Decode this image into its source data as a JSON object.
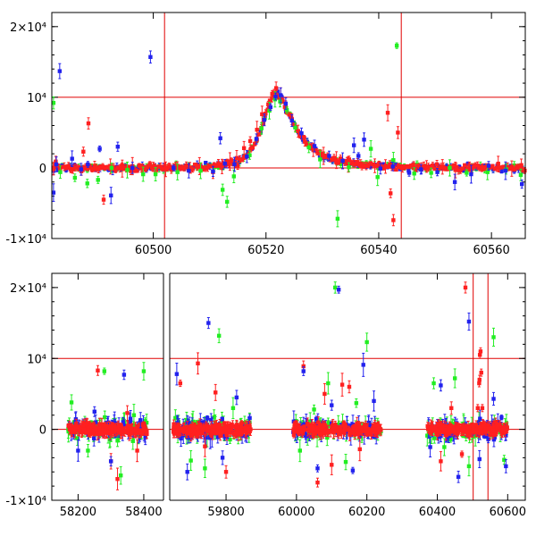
{
  "colors": {
    "red": "#ff2020",
    "green": "#22ee22",
    "blue": "#2222ee",
    "frame": "#000000",
    "ref_line": "#e00000"
  },
  "chart_data": [
    {
      "type": "scatter",
      "title": "",
      "xlabel": "",
      "ylabel": "",
      "xlim": [
        60482,
        60566
      ],
      "ylim": [
        -10000,
        22000
      ],
      "xticks": [
        60500,
        60520,
        60540,
        60560
      ],
      "xtick_labels": [
        "60500",
        "60520",
        "60540",
        "60560"
      ],
      "yticks": [
        -10000,
        0,
        10000,
        20000
      ],
      "ytick_labels": [
        "-1×10⁴",
        "0",
        "10⁴",
        "2×10⁴"
      ],
      "hlines": [
        0,
        10000
      ],
      "vlines": [
        60502,
        60544
      ],
      "error_bars": true,
      "model_curve": {
        "x": [
          60482,
          60500,
          60510,
          60515,
          60517,
          60519,
          60520,
          60521,
          60522,
          60523,
          60524,
          60526,
          60528,
          60530,
          60533,
          60537,
          60542,
          60550,
          60566
        ],
        "y": [
          0,
          0,
          150,
          800,
          2200,
          5000,
          7600,
          9800,
          10600,
          9400,
          7600,
          4600,
          2800,
          1700,
          1000,
          500,
          200,
          80,
          0
        ]
      },
      "series": [
        {
          "name": "",
          "color": "red",
          "x": [
            60482.3,
            60482.7,
            60485.5,
            60487.6,
            60488.5,
            60489.6,
            60491.2,
            60492.4,
            60494.5,
            60496.3,
            60498.1,
            60500.0,
            60502.2,
            60504.3,
            60506.5,
            60508.2,
            60510.6,
            60512.2,
            60513.6,
            60514.8,
            60516.1,
            60517.2,
            60518.4,
            60519.3,
            60520.4,
            60521.1,
            60521.8,
            60522.6,
            60523.5,
            60524.6,
            60525.7,
            60526.9,
            60528.4,
            60530.2,
            60532.5,
            60534.6,
            60536.8,
            60539.3,
            60541.2,
            60541.6,
            60542.1,
            60542.6,
            60543.4,
            60546.2,
            60548.5,
            60551.3,
            60553.6,
            60556.1,
            60558.4,
            60561.2,
            60563.6,
            60565.3
          ],
          "y": [
            -100,
            900,
            -300,
            2300,
            6300,
            300,
            -4500,
            200,
            -100,
            250,
            0,
            150,
            -200,
            300,
            50,
            250,
            -600,
            200,
            900,
            1400,
            2800,
            3800,
            5400,
            7600,
            9000,
            10500,
            11300,
            10200,
            8600,
            6900,
            5200,
            3700,
            2500,
            1700,
            1100,
            500,
            600,
            300,
            200,
            7800,
            -3600,
            -7400,
            5000,
            0,
            200,
            150,
            -300,
            400,
            100,
            600,
            -100,
            400
          ]
        },
        {
          "name": "",
          "color": "green",
          "x": [
            60482.3,
            60483.5,
            60486.1,
            60488.3,
            60490.2,
            60492.6,
            60495.4,
            60498.2,
            60500.4,
            60504.3,
            60508.4,
            60512.3,
            60513.1,
            60514.3,
            60517.1,
            60519.2,
            60520.6,
            60521.6,
            60522.5,
            60523.7,
            60525.2,
            60527.6,
            60529.6,
            60532.7,
            60534.7,
            60538.6,
            60539.8,
            60542.6,
            60543.2,
            60546.3,
            60549.3,
            60552.6,
            60555.6,
            60559.3,
            60562.6,
            60565.2
          ],
          "y": [
            9200,
            -600,
            -1400,
            -2200,
            -1700,
            0,
            -300,
            -900,
            -900,
            -600,
            -400,
            -3100,
            -4800,
            -1200,
            1800,
            5600,
            8100,
            9700,
            9400,
            8200,
            5700,
            2900,
            1200,
            -7200,
            100,
            2700,
            -1300,
            1100,
            17300,
            -800,
            -700,
            0,
            -700,
            -600,
            -200,
            -1000
          ]
        },
        {
          "name": "",
          "color": "blue",
          "x": [
            60482.3,
            60482.8,
            60483.4,
            60485.6,
            60487.2,
            60488.4,
            60490.5,
            60492.5,
            60493.7,
            60496.3,
            60499.5,
            60503.6,
            60506.3,
            60510.6,
            60511.9,
            60512.7,
            60514.4,
            60516.6,
            60518.3,
            60519.7,
            60520.8,
            60521.7,
            60522.6,
            60523.5,
            60524.6,
            60526.3,
            60528.6,
            60531.2,
            60533.6,
            60535.6,
            60536.4,
            60537.4,
            60540.3,
            60542.5,
            60545.4,
            60547.5,
            60550.4,
            60553.5,
            60556.4,
            60559.5,
            60562.5,
            60565.4
          ],
          "y": [
            -3500,
            500,
            13700,
            1300,
            -200,
            500,
            2700,
            -3900,
            3000,
            0,
            15700,
            0,
            -400,
            -500,
            4200,
            600,
            500,
            1600,
            4100,
            6800,
            8600,
            10100,
            10300,
            9100,
            6700,
            4900,
            3100,
            1700,
            1000,
            3200,
            1700,
            4000,
            -100,
            200,
            -700,
            -200,
            -600,
            -2000,
            -900,
            300,
            -400,
            -2300
          ]
        }
      ]
    },
    {
      "type": "scatter",
      "title": "",
      "xlabel": "",
      "ylabel": "",
      "xlim": [
        58120,
        60650
      ],
      "ylim": [
        -10000,
        22000
      ],
      "xticks": [
        58200,
        58400,
        59800,
        60000,
        60200,
        60400,
        60600
      ],
      "xtick_labels": [
        "58200",
        "58400",
        "59800",
        "60000",
        "60200",
        "60400",
        "60600"
      ],
      "axis_break": {
        "gap_px_from": 183,
        "gap_px_to": 190,
        "left_range": [
          58120,
          58460
        ],
        "right_range": [
          59640,
          60650
        ]
      },
      "yticks": [
        -10000,
        0,
        10000,
        20000
      ],
      "ytick_labels": [
        "-1×10⁴",
        "0",
        "10⁴",
        "2×10⁴"
      ],
      "hlines": [
        0,
        10000
      ],
      "vlines": [
        60502,
        60544
      ],
      "error_bars": true,
      "seasons": [
        {
          "x0": 58170,
          "x1": 58410
        },
        {
          "x0": 59650,
          "x1": 59870
        },
        {
          "x0": 59990,
          "x1": 60240
        },
        {
          "x0": 60370,
          "x1": 60600
        }
      ],
      "spike": {
        "x": [
          60515,
          60519,
          60521,
          60523,
          60525,
          60528
        ],
        "y": [
          3000,
          6500,
          10500,
          11000,
          8000,
          3000
        ]
      },
      "outliers": {
        "red": {
          "x": [
            58260,
            58300,
            58320,
            58350,
            58380,
            59670,
            59720,
            59740,
            59770,
            59800,
            60020,
            60060,
            60080,
            60100,
            60130,
            60150,
            60180,
            60410,
            60440,
            60470,
            60480,
            60520
          ],
          "y": [
            8300,
            -4500,
            -7000,
            2300,
            -3000,
            6500,
            9300,
            -2400,
            5200,
            -6000,
            8900,
            -7500,
            5000,
            -5000,
            6300,
            6000,
            -2800,
            -4500,
            3000,
            -3500,
            20000,
            7000
          ]
        },
        "green": {
          "x": [
            58180,
            58230,
            58280,
            58330,
            58370,
            58400,
            59700,
            59740,
            59780,
            59820,
            60010,
            60050,
            60090,
            60110,
            60140,
            60170,
            60200,
            60390,
            60420,
            60450,
            60490,
            60560,
            60590
          ],
          "y": [
            3800,
            -3000,
            8200,
            -6500,
            2000,
            8200,
            -4400,
            -5500,
            13200,
            3000,
            -3000,
            2800,
            6500,
            20000,
            -4600,
            3700,
            12300,
            6500,
            -2500,
            7200,
            -5200,
            13000,
            -4300
          ]
        },
        "blue": {
          "x": [
            58200,
            58250,
            58300,
            58340,
            58390,
            59660,
            59690,
            59750,
            59790,
            59830,
            60020,
            60060,
            60100,
            60120,
            60160,
            60190,
            60220,
            60380,
            60410,
            60460,
            60490,
            60520,
            60560,
            60595
          ],
          "y": [
            -3000,
            2500,
            -4500,
            7700,
            1300,
            7800,
            -6000,
            15000,
            -4000,
            4500,
            8200,
            -5500,
            3400,
            19700,
            -5800,
            9100,
            4000,
            -2500,
            6200,
            -6700,
            15200,
            -4200,
            4300,
            -5200
          ]
        }
      }
    }
  ]
}
